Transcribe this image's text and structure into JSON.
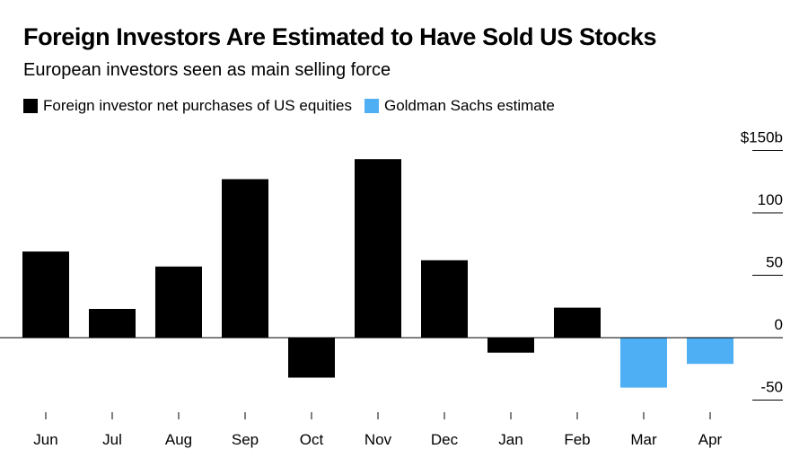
{
  "header": {
    "title": "Foreign Investors Are Estimated to Have Sold US Stocks",
    "subtitle": "European investors seen as main selling force"
  },
  "legend": [
    {
      "label": "Foreign investor net purchases of US equities",
      "color": "#000000"
    },
    {
      "label": "Goldman Sachs estimate",
      "color": "#4EAFF5"
    }
  ],
  "chart_data": {
    "type": "bar",
    "title": "Foreign Investors Are Estimated to Have Sold US Stocks",
    "subtitle": "European investors seen as main selling force",
    "categories": [
      "Jun",
      "Jul",
      "Aug",
      "Sep",
      "Oct",
      "Nov",
      "Dec",
      "Jan",
      "Feb",
      "Mar",
      "Apr"
    ],
    "series": [
      {
        "name": "Foreign investor net purchases of US equities",
        "color": "#000000",
        "values": [
          69,
          23,
          57,
          127,
          -32,
          143,
          62,
          -12,
          24,
          null,
          null
        ]
      },
      {
        "name": "Goldman Sachs estimate",
        "color": "#4EAFF5",
        "values": [
          null,
          null,
          null,
          null,
          null,
          null,
          null,
          null,
          null,
          -40,
          -21
        ]
      }
    ],
    "y_axis": {
      "ticks": [
        150,
        100,
        50,
        0,
        -50
      ],
      "tick_labels": [
        "$150b",
        "100",
        "50",
        "0",
        "-50"
      ],
      "position": "right"
    },
    "ylim": [
      -63,
      150
    ],
    "xlabel": "",
    "ylabel": "",
    "grid": false,
    "legend_position": "top-left"
  }
}
